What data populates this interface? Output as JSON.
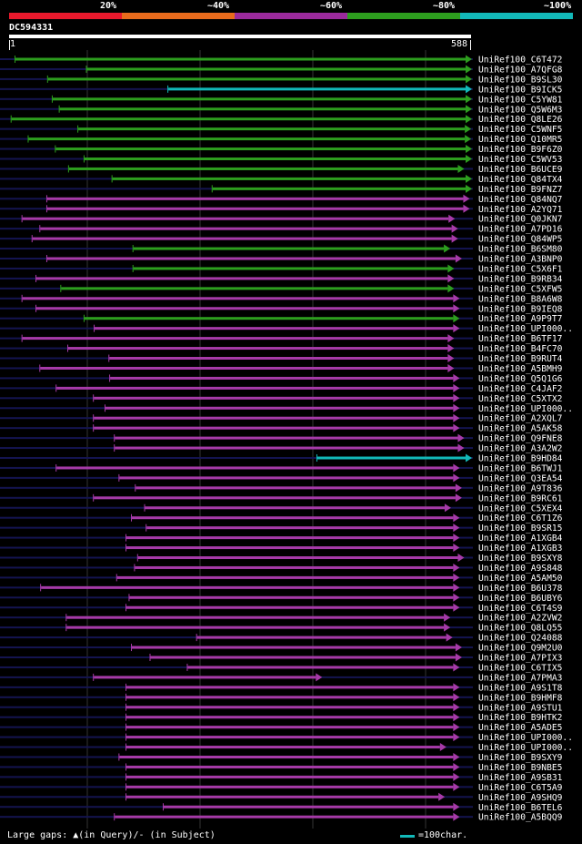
{
  "query": {
    "id": "DC594331",
    "length": 588,
    "ruler_start": "1",
    "ruler_end": "588"
  },
  "identity_scale": [
    {
      "label": "20%",
      "color": "#e8192c"
    },
    {
      "label": "~40%",
      "color": "#e86b1c"
    },
    {
      "label": "~60%",
      "color": "#9b2a9c"
    },
    {
      "label": "~80%",
      "color": "#2d9e1e"
    },
    {
      "label": "~100%",
      "color": "#12b8b8"
    }
  ],
  "colors": {
    "green": "#2d9e1e",
    "magenta": "#a63aa8",
    "cyan": "#12b8b8",
    "gap": "#ffff88",
    "track": "#141450",
    "grid": "#333333"
  },
  "legend": {
    "text": "Large gaps: ▲(in Query)/- (in Subject)",
    "scale_text": "=100char."
  },
  "chart_data": {
    "type": "alignment-overview",
    "x_range": [
      1,
      588
    ],
    "hits": [
      {
        "label": "UniRef100_C6T472",
        "start": 8,
        "end": 590,
        "color": "green"
      },
      {
        "label": "UniRef100_A7QFG8",
        "start": 100,
        "end": 590,
        "color": "green"
      },
      {
        "label": "UniRef100_B9SL30",
        "start": 50,
        "end": 590,
        "color": "green"
      },
      {
        "label": "UniRef100_B9ICK5",
        "start": 205,
        "end": 590,
        "color": "cyan"
      },
      {
        "label": "UniRef100_C5YW81",
        "start": 56,
        "end": 590,
        "color": "green"
      },
      {
        "label": "UniRef100_Q5W6M3",
        "start": 65,
        "end": 590,
        "color": "green"
      },
      {
        "label": "UniRef100_Q8LE26",
        "start": 3,
        "end": 590,
        "color": "green"
      },
      {
        "label": "UniRef100_C5WNF5",
        "start": 89,
        "end": 587,
        "color": "green"
      },
      {
        "label": "UniRef100_Q10MR5",
        "start": 25,
        "end": 587,
        "color": "green"
      },
      {
        "label": "UniRef100_B9F6Z0",
        "start": 60,
        "end": 590,
        "color": "green"
      },
      {
        "label": "UniRef100_C5WV53",
        "start": 97,
        "end": 590,
        "color": "green"
      },
      {
        "label": "UniRef100_B6UCE9",
        "start": 77,
        "end": 578,
        "color": "green"
      },
      {
        "label": "UniRef100_Q84TX4",
        "start": 133,
        "end": 590,
        "color": "green"
      },
      {
        "label": "UniRef100_B9FNZ7",
        "start": 262,
        "end": 590,
        "color": "green"
      },
      {
        "label": "UniRef100_Q84NQ7",
        "start": 49,
        "end": 585,
        "color": "magenta"
      },
      {
        "label": "UniRef100_A2YQ71",
        "start": 49,
        "end": 585,
        "color": "magenta"
      },
      {
        "label": "UniRef100_Q0JKN7",
        "start": 17,
        "end": 566,
        "color": "magenta"
      },
      {
        "label": "UniRef100_A7PD16",
        "start": 40,
        "end": 570,
        "color": "magenta"
      },
      {
        "label": "UniRef100_Q84WP5",
        "start": 30,
        "end": 570,
        "color": "magenta"
      },
      {
        "label": "UniRef100_B6SM80",
        "start": 160,
        "end": 560,
        "color": "green"
      },
      {
        "label": "UniRef100_A3BNP0",
        "start": 49,
        "end": 575,
        "color": "magenta"
      },
      {
        "label": "UniRef100_C5X6F1",
        "start": 160,
        "end": 565,
        "color": "green"
      },
      {
        "label": "UniRef100_B9RB34",
        "start": 35,
        "end": 565,
        "color": "magenta"
      },
      {
        "label": "UniRef100_C5XFW5",
        "start": 67,
        "end": 565,
        "color": "green"
      },
      {
        "label": "UniRef100_B8A6W8",
        "start": 17,
        "end": 572,
        "color": "magenta"
      },
      {
        "label": "UniRef100_B9IEQ8",
        "start": 35,
        "end": 572,
        "color": "magenta"
      },
      {
        "label": "UniRef100_A9P9T7",
        "start": 97,
        "end": 572,
        "color": "green"
      },
      {
        "label": "UniRef100_UPI000..",
        "start": 110,
        "end": 572,
        "color": "magenta"
      },
      {
        "label": "UniRef100_B6TF17",
        "start": 17,
        "end": 565,
        "color": "magenta"
      },
      {
        "label": "UniRef100_B4FC70",
        "start": 76,
        "end": 565,
        "color": "magenta"
      },
      {
        "label": "UniRef100_B9RUT4",
        "start": 129,
        "end": 565,
        "color": "magenta"
      },
      {
        "label": "UniRef100_A5BMH9",
        "start": 40,
        "end": 565,
        "color": "magenta"
      },
      {
        "label": "UniRef100_Q5Q1G6",
        "start": 130,
        "end": 572,
        "color": "magenta"
      },
      {
        "label": "UniRef100_C4JAF2",
        "start": 61,
        "end": 572,
        "color": "magenta"
      },
      {
        "label": "UniRef100_C5XTX2",
        "start": 109,
        "end": 572,
        "color": "magenta"
      },
      {
        "label": "UniRef100_UPI000..",
        "start": 124,
        "end": 572,
        "color": "magenta"
      },
      {
        "label": "UniRef100_A2XQL7",
        "start": 109,
        "end": 572,
        "color": "magenta"
      },
      {
        "label": "UniRef100_A5AK58",
        "start": 109,
        "end": 572,
        "color": "magenta"
      },
      {
        "label": "UniRef100_Q9FNE8",
        "start": 136,
        "end": 578,
        "color": "magenta"
      },
      {
        "label": "UniRef100_A3A2W2",
        "start": 136,
        "end": 578,
        "color": "magenta"
      },
      {
        "label": "UniRef100_B9HD84",
        "start": 397,
        "end": 590,
        "color": "cyan"
      },
      {
        "label": "UniRef100_B6TWJ1",
        "start": 61,
        "end": 572,
        "color": "magenta"
      },
      {
        "label": "UniRef100_Q3EA54",
        "start": 142,
        "end": 572,
        "color": "magenta"
      },
      {
        "label": "UniRef100_A9T836",
        "start": 163,
        "end": 575,
        "color": "magenta"
      },
      {
        "label": "UniRef100_B9RC61",
        "start": 109,
        "end": 575,
        "color": "magenta"
      },
      {
        "label": "UniRef100_C5XEX4",
        "start": 175,
        "end": 561,
        "color": "magenta"
      },
      {
        "label": "UniRef100_C6T1Z6",
        "start": 158,
        "end": 572,
        "color": "magenta"
      },
      {
        "label": "UniRef100_B9SR15",
        "start": 177,
        "end": 572,
        "color": "magenta"
      },
      {
        "label": "UniRef100_A1XGB4",
        "start": 151,
        "end": 572,
        "color": "magenta"
      },
      {
        "label": "UniRef100_A1XGB3",
        "start": 151,
        "end": 572,
        "color": "magenta"
      },
      {
        "label": "UniRef100_B9SXY8",
        "start": 166,
        "end": 578,
        "color": "magenta"
      },
      {
        "label": "UniRef100_A9S848",
        "start": 162,
        "end": 572,
        "color": "magenta"
      },
      {
        "label": "UniRef100_A5AM50",
        "start": 139,
        "end": 572,
        "color": "magenta"
      },
      {
        "label": "UniRef100_B6U378",
        "start": 41,
        "end": 572,
        "color": "magenta"
      },
      {
        "label": "UniRef100_B6UBY6",
        "start": 155,
        "end": 572,
        "color": "magenta"
      },
      {
        "label": "UniRef100_C6T4S9",
        "start": 151,
        "end": 572,
        "color": "magenta"
      },
      {
        "label": "UniRef100_A2ZVW2",
        "start": 74,
        "end": 560,
        "color": "magenta"
      },
      {
        "label": "UniRef100_Q8LQ55",
        "start": 74,
        "end": 560,
        "color": "magenta"
      },
      {
        "label": "UniRef100_Q24088",
        "start": 242,
        "end": 563,
        "color": "magenta"
      },
      {
        "label": "UniRef100_Q9M2U0",
        "start": 158,
        "end": 575,
        "color": "magenta"
      },
      {
        "label": "UniRef100_A7PIX3",
        "start": 182,
        "end": 575,
        "color": "magenta"
      },
      {
        "label": "UniRef100_C6TIX5",
        "start": 230,
        "end": 572,
        "color": "magenta"
      },
      {
        "label": "UniRef100_A7PMA3",
        "start": 109,
        "end": 395,
        "color": "magenta"
      },
      {
        "label": "UniRef100_A9S1T8",
        "start": 151,
        "end": 572,
        "color": "magenta"
      },
      {
        "label": "UniRef100_B9HMF8",
        "start": 151,
        "end": 572,
        "color": "magenta"
      },
      {
        "label": "UniRef100_A9STU1",
        "start": 151,
        "end": 572,
        "color": "magenta"
      },
      {
        "label": "UniRef100_B9HTK2",
        "start": 151,
        "end": 572,
        "color": "magenta"
      },
      {
        "label": "UniRef100_A5ADE5",
        "start": 151,
        "end": 572,
        "color": "magenta"
      },
      {
        "label": "UniRef100_UPI000..",
        "start": 151,
        "end": 572,
        "color": "magenta"
      },
      {
        "label": "UniRef100_UPI000..",
        "start": 151,
        "end": 555,
        "color": "magenta"
      },
      {
        "label": "UniRef100_B9SXY9",
        "start": 142,
        "end": 572,
        "color": "magenta"
      },
      {
        "label": "UniRef100_B9NBE5",
        "start": 151,
        "end": 572,
        "color": "magenta"
      },
      {
        "label": "UniRef100_A9SB31",
        "start": 151,
        "end": 572,
        "color": "magenta"
      },
      {
        "label": "UniRef100_C6T5A9",
        "start": 151,
        "end": 572,
        "color": "magenta"
      },
      {
        "label": "UniRef100_A9SHQ9",
        "start": 151,
        "end": 553,
        "color": "magenta"
      },
      {
        "label": "UniRef100_B6TEL6",
        "start": 199,
        "end": 572,
        "color": "magenta"
      },
      {
        "label": "UniRef100_A5BQQ9",
        "start": 136,
        "end": 572,
        "color": "magenta"
      }
    ]
  }
}
